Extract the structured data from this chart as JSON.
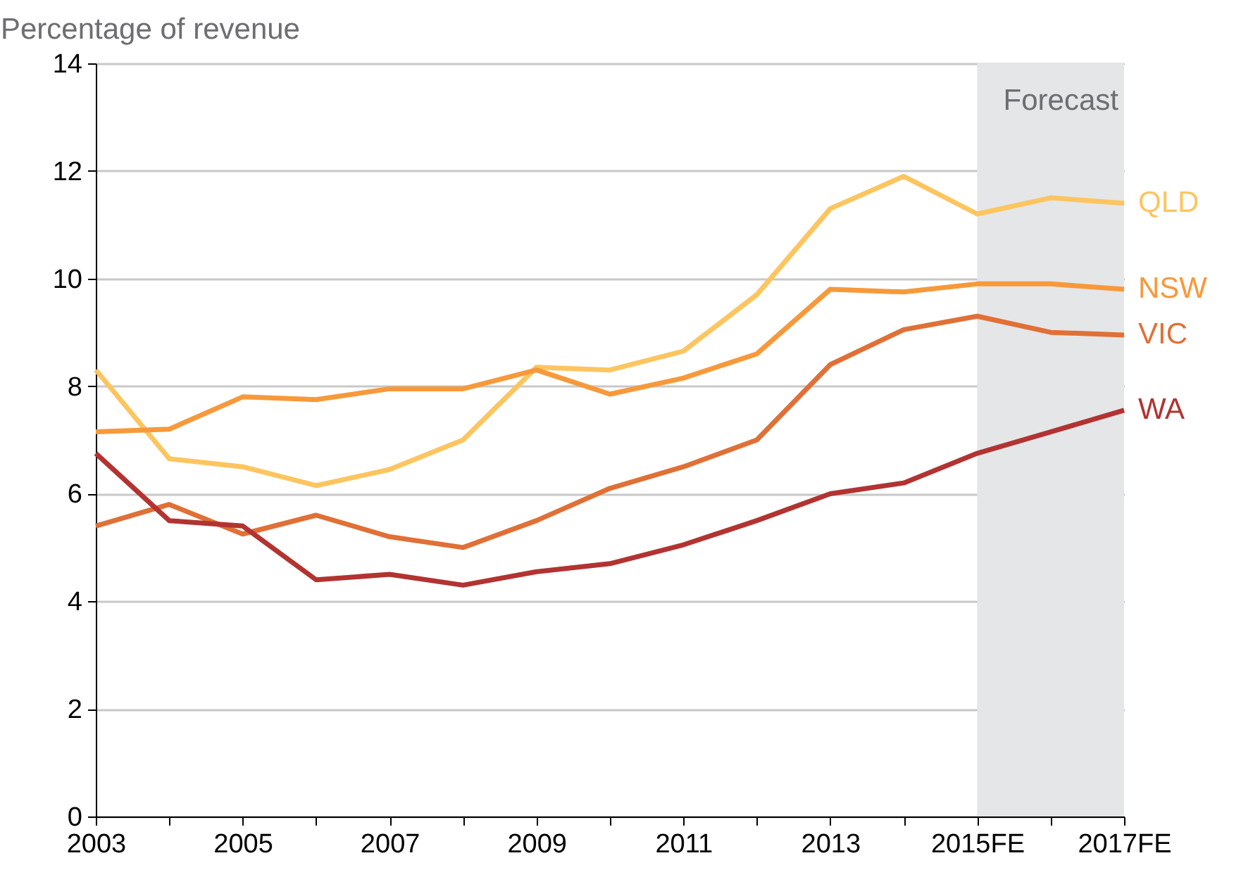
{
  "chart_data": {
    "type": "line",
    "ylabel": "Percentage of revenue",
    "categories": [
      "2003",
      null,
      "2005",
      null,
      "2007",
      null,
      "2009",
      null,
      "2011",
      null,
      "2013",
      null,
      "2015FE",
      null,
      "2017FE"
    ],
    "series": [
      {
        "name": "QLD",
        "color": "#fdc55f",
        "values": [
          8.3,
          6.65,
          6.5,
          6.15,
          6.45,
          7.0,
          8.35,
          8.3,
          8.65,
          9.7,
          11.3,
          11.9,
          11.2,
          11.5,
          11.4
        ]
      },
      {
        "name": "NSW",
        "color": "#f7993a",
        "values": [
          7.15,
          7.2,
          7.8,
          7.75,
          7.95,
          7.95,
          8.3,
          7.85,
          8.15,
          8.6,
          9.8,
          9.75,
          9.9,
          9.9,
          9.8
        ]
      },
      {
        "name": "VIC",
        "color": "#e07036",
        "values": [
          5.4,
          5.8,
          5.25,
          5.6,
          5.2,
          5.0,
          5.5,
          6.1,
          6.5,
          7.0,
          8.4,
          9.05,
          9.3,
          9.0,
          8.95
        ]
      },
      {
        "name": "WA",
        "color": "#b23331",
        "values": [
          6.75,
          5.5,
          5.4,
          4.4,
          4.5,
          4.3,
          4.55,
          4.7,
          5.05,
          5.5,
          6.0,
          6.2,
          6.75,
          7.15,
          7.55
        ]
      }
    ],
    "ylim": [
      0,
      14
    ],
    "yticks": [
      0,
      2,
      4,
      6,
      8,
      10,
      12,
      14
    ],
    "grid": "y",
    "bands": [
      {
        "axis": "x",
        "from": "2015FE",
        "to": "2017FE",
        "label": "Forecast",
        "color": "#e5e6e8"
      }
    ]
  }
}
